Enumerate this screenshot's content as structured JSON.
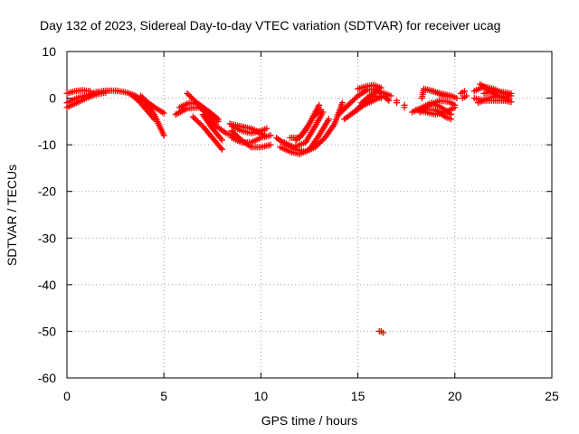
{
  "chart_data": {
    "type": "scatter",
    "title": "Day 132 of 2023, Sidereal Day-to-day VTEC variation (SDTVAR) for receiver ucag",
    "xlabel": "GPS time / hours",
    "ylabel": "SDTVAR / TECUs",
    "xlim": [
      0,
      25
    ],
    "ylim": [
      -60,
      10
    ],
    "grid": true,
    "marker": "+",
    "x_ticks": [
      0,
      5,
      10,
      15,
      20,
      25
    ],
    "x_tick_labels": [
      "0",
      "5",
      "10",
      "15",
      "20",
      "25"
    ],
    "y_ticks": [
      10,
      0,
      -10,
      -20,
      -30,
      -40,
      -50,
      -60
    ],
    "y_tick_labels": [
      "10",
      "0",
      "-10",
      "-20",
      "-30",
      "-40",
      "-50",
      "-60"
    ],
    "series": [
      {
        "name": "SDTVAR",
        "color": "#ff0000",
        "tracks": [
          [
            [
              0.0,
              -1.0
            ],
            [
              0.5,
              0.0
            ],
            [
              1.0,
              0.6
            ],
            [
              1.5,
              1.3
            ],
            [
              2.0,
              1.6
            ],
            [
              2.5,
              1.6
            ],
            [
              3.0,
              1.3
            ],
            [
              3.5,
              0.6
            ],
            [
              4.0,
              -0.8
            ],
            [
              4.5,
              -3.5
            ],
            [
              5.0,
              -8.0
            ]
          ],
          [
            [
              0.0,
              -2.0
            ],
            [
              0.5,
              -1.0
            ],
            [
              1.0,
              0.0
            ],
            [
              1.5,
              0.8
            ],
            [
              2.0,
              1.2
            ]
          ],
          [
            [
              0.0,
              1.0
            ],
            [
              0.4,
              1.5
            ],
            [
              0.8,
              1.7
            ],
            [
              1.2,
              1.5
            ]
          ],
          [
            [
              3.8,
              0.5
            ],
            [
              4.2,
              -1.0
            ],
            [
              4.6,
              -2.2
            ],
            [
              5.0,
              -3.2
            ]
          ],
          [
            [
              3.3,
              0.8
            ],
            [
              3.7,
              -0.6
            ],
            [
              4.1,
              -2.5
            ],
            [
              4.5,
              -4.5
            ]
          ],
          [
            [
              5.6,
              -3.5
            ],
            [
              6.2,
              -2.2
            ],
            [
              6.8,
              -2.0
            ],
            [
              7.3,
              -2.8
            ],
            [
              7.8,
              -4.5
            ]
          ],
          [
            [
              5.8,
              -2.0
            ],
            [
              6.3,
              -1.0
            ],
            [
              6.8,
              -1.3
            ],
            [
              7.3,
              -2.8
            ],
            [
              7.8,
              -5.0
            ]
          ],
          [
            [
              6.2,
              1.0
            ],
            [
              6.7,
              -1.0
            ],
            [
              7.2,
              -3.5
            ],
            [
              7.7,
              -6.0
            ],
            [
              8.2,
              -7.5
            ],
            [
              8.8,
              -8.5
            ]
          ],
          [
            [
              6.5,
              -4.0
            ],
            [
              7.0,
              -6.0
            ],
            [
              7.5,
              -8.5
            ],
            [
              8.0,
              -11.0
            ]
          ],
          [
            [
              7.0,
              -3.5
            ],
            [
              7.5,
              -6.5
            ],
            [
              8.0,
              -9.0
            ]
          ],
          [
            [
              8.5,
              -7.0
            ],
            [
              9.0,
              -9.0
            ],
            [
              9.5,
              -10.5
            ],
            [
              10.0,
              -10.5
            ],
            [
              10.5,
              -10.0
            ]
          ],
          [
            [
              8.5,
              -8.5
            ],
            [
              9.0,
              -9.5
            ],
            [
              9.5,
              -9.5
            ],
            [
              10.0,
              -8.5
            ],
            [
              10.5,
              -8.0
            ]
          ],
          [
            [
              8.5,
              -6.0
            ],
            [
              9.0,
              -7.0
            ],
            [
              9.5,
              -7.5
            ],
            [
              10.0,
              -7.0
            ],
            [
              10.3,
              -6.5
            ]
          ],
          [
            [
              8.4,
              -5.5
            ],
            [
              8.9,
              -6.0
            ],
            [
              9.5,
              -6.5
            ],
            [
              10.2,
              -8.0
            ]
          ],
          [
            [
              10.8,
              -8.5
            ],
            [
              11.3,
              -10.0
            ],
            [
              11.8,
              -11.0
            ],
            [
              12.3,
              -11.5
            ],
            [
              12.8,
              -10.5
            ],
            [
              13.3,
              -8.5
            ],
            [
              13.8,
              -5.5
            ],
            [
              14.2,
              -1.0
            ]
          ],
          [
            [
              11.0,
              -10.5
            ],
            [
              11.5,
              -11.5
            ],
            [
              12.0,
              -12.0
            ],
            [
              12.5,
              -11.0
            ],
            [
              13.0,
              -8.0
            ],
            [
              13.5,
              -4.5
            ]
          ],
          [
            [
              11.2,
              -9.5
            ],
            [
              11.7,
              -10.5
            ],
            [
              12.3,
              -9.5
            ],
            [
              12.8,
              -6.0
            ],
            [
              13.2,
              -3.0
            ]
          ],
          [
            [
              11.5,
              -8.5
            ],
            [
              12.0,
              -8.5
            ],
            [
              12.5,
              -5.5
            ],
            [
              13.0,
              -1.5
            ]
          ],
          [
            [
              11.8,
              -9.0
            ],
            [
              12.3,
              -7.0
            ],
            [
              12.7,
              -4.0
            ],
            [
              13.1,
              -2.5
            ]
          ],
          [
            [
              14.0,
              -3.5
            ],
            [
              14.5,
              -1.5
            ],
            [
              15.0,
              0.5
            ],
            [
              15.5,
              1.8
            ],
            [
              16.0,
              2.0
            ],
            [
              16.2,
              1.0
            ]
          ],
          [
            [
              14.3,
              -4.5
            ],
            [
              14.8,
              -3.0
            ],
            [
              15.3,
              -1.0
            ],
            [
              15.8,
              0.5
            ],
            [
              16.2,
              0.0
            ]
          ],
          [
            [
              14.8,
              -3.0
            ],
            [
              15.3,
              -1.5
            ],
            [
              15.8,
              -0.5
            ],
            [
              16.3,
              0.5
            ],
            [
              16.6,
              -0.5
            ]
          ],
          [
            [
              15.2,
              -1.0
            ],
            [
              15.6,
              0.5
            ],
            [
              16.0,
              1.5
            ],
            [
              16.4,
              1.0
            ],
            [
              16.7,
              0.5
            ]
          ],
          [
            [
              15.0,
              2.0
            ],
            [
              15.4,
              2.5
            ],
            [
              15.8,
              2.8
            ],
            [
              16.2,
              2.2
            ]
          ],
          [
            [
              17.0,
              -1.0
            ],
            [
              17.0,
              -0.5
            ]
          ],
          [
            [
              17.4,
              -1.5
            ],
            [
              17.4,
              -2.0
            ]
          ],
          [
            [
              16.1,
              -50.0
            ],
            [
              16.2,
              -50.0
            ],
            [
              16.3,
              -50.3
            ]
          ],
          [
            [
              17.8,
              -3.0
            ],
            [
              18.3,
              -2.0
            ],
            [
              18.8,
              -1.0
            ],
            [
              19.3,
              -2.0
            ],
            [
              19.8,
              -3.5
            ]
          ],
          [
            [
              18.0,
              -2.5
            ],
            [
              18.5,
              -3.0
            ],
            [
              19.0,
              -3.5
            ],
            [
              19.5,
              -3.0
            ],
            [
              20.0,
              -2.0
            ]
          ],
          [
            [
              18.2,
              -3.0
            ],
            [
              18.7,
              -1.5
            ],
            [
              19.2,
              -0.5
            ],
            [
              19.7,
              -0.8
            ],
            [
              20.0,
              -1.5
            ]
          ],
          [
            [
              18.5,
              -2.5
            ],
            [
              19.0,
              -2.5
            ],
            [
              19.5,
              -4.0
            ],
            [
              19.8,
              -4.5
            ]
          ],
          [
            [
              18.3,
              0.0
            ],
            [
              18.4,
              2.0
            ],
            [
              18.9,
              1.5
            ],
            [
              19.4,
              0.5
            ],
            [
              19.9,
              0.3
            ]
          ],
          [
            [
              18.8,
              1.5
            ],
            [
              19.3,
              1.0
            ],
            [
              19.8,
              0.5
            ],
            [
              20.1,
              0.0
            ]
          ],
          [
            [
              20.3,
              1.0
            ],
            [
              20.5,
              1.5
            ]
          ],
          [
            [
              20.4,
              0.0
            ],
            [
              20.6,
              0.5
            ]
          ],
          [
            [
              21.0,
              1.5
            ],
            [
              21.5,
              2.5
            ],
            [
              22.0,
              2.0
            ],
            [
              22.5,
              1.0
            ],
            [
              22.9,
              0.5
            ]
          ],
          [
            [
              21.0,
              0.0
            ],
            [
              21.5,
              -0.5
            ],
            [
              22.0,
              -0.5
            ],
            [
              22.5,
              -0.5
            ],
            [
              22.9,
              -0.8
            ]
          ],
          [
            [
              21.3,
              3.0
            ],
            [
              21.8,
              1.5
            ],
            [
              22.3,
              0.3
            ],
            [
              22.8,
              -0.3
            ]
          ],
          [
            [
              21.5,
              1.0
            ],
            [
              22.0,
              1.5
            ],
            [
              22.5,
              1.3
            ],
            [
              22.9,
              1.0
            ]
          ],
          [
            [
              21.2,
              -1.0
            ],
            [
              21.7,
              0.0
            ],
            [
              22.2,
              0.5
            ],
            [
              22.7,
              0.2
            ]
          ]
        ]
      }
    ]
  }
}
